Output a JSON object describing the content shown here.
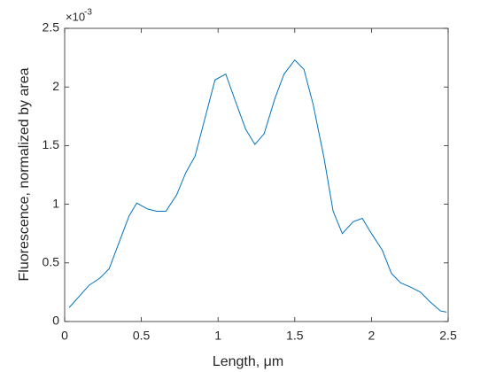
{
  "chart_data": {
    "type": "line",
    "xlabel": "Length, μm",
    "ylabel": "Fluorescence, normalized by area",
    "y_exponent_base": "×10",
    "y_exponent": "-3",
    "x": [
      0.03,
      0.16,
      0.23,
      0.29,
      0.42,
      0.47,
      0.54,
      0.6,
      0.66,
      0.73,
      0.79,
      0.85,
      0.98,
      1.05,
      1.11,
      1.18,
      1.24,
      1.3,
      1.37,
      1.43,
      1.5,
      1.56,
      1.62,
      1.69,
      1.75,
      1.81,
      1.88,
      1.94,
      2.0,
      2.07,
      2.13,
      2.19,
      2.26,
      2.32,
      2.38,
      2.45,
      2.49
    ],
    "series": [
      {
        "color": "#0072bd",
        "values": [
          0.12,
          0.31,
          0.37,
          0.45,
          0.9,
          1.01,
          0.96,
          0.94,
          0.94,
          1.08,
          1.27,
          1.41,
          2.06,
          2.11,
          1.89,
          1.64,
          1.51,
          1.6,
          1.9,
          2.11,
          2.23,
          2.15,
          1.85,
          1.4,
          0.94,
          0.75,
          0.85,
          0.88,
          0.75,
          0.61,
          0.41,
          0.33,
          0.29,
          0.25,
          0.17,
          0.09,
          0.08
        ]
      }
    ],
    "xlim": [
      0,
      2.5
    ],
    "xticks": [
      0,
      0.5,
      1,
      1.5,
      2,
      2.5
    ],
    "ylim": [
      0,
      2.5
    ],
    "yticks": [
      0,
      0.5,
      1,
      1.5,
      2,
      2.5
    ]
  }
}
